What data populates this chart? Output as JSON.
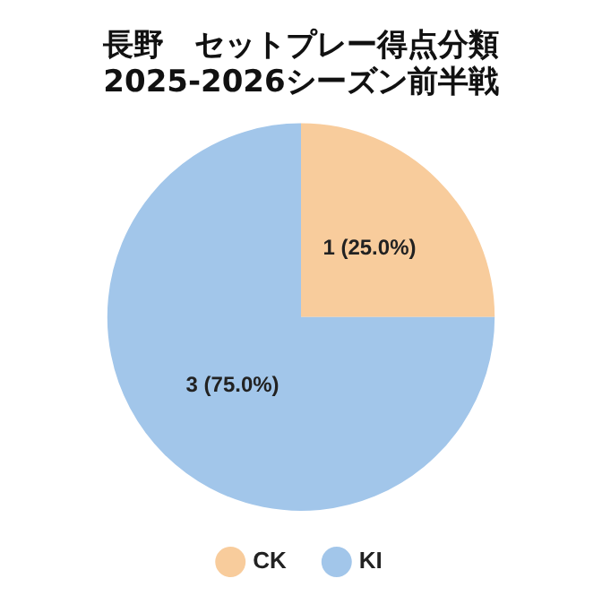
{
  "chart_data": {
    "type": "pie",
    "title": "長野　セットプレー得点分類\n2025-2026シーズン前半戦",
    "categories": [
      "CK",
      "KI"
    ],
    "values": [
      1,
      3
    ],
    "colors": [
      "#f8cc9c",
      "#a2c6ea"
    ],
    "value_labels": [
      "1 (25.0%)",
      "3 (75.0%)"
    ],
    "legend": "bottom"
  }
}
